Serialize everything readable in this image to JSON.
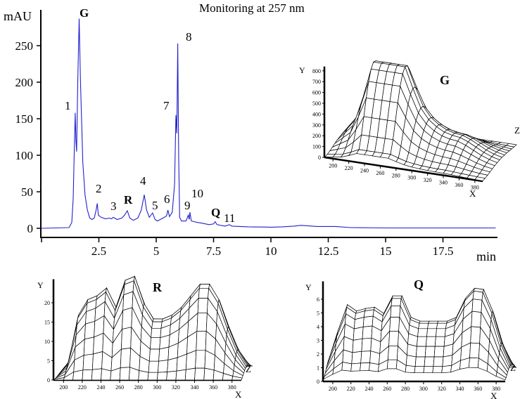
{
  "chart_data": [
    {
      "type": "line",
      "title": "Monitoring at 257 nm",
      "xlabel": "min",
      "ylabel": "mAU",
      "xlim": [
        0,
        19.8
      ],
      "ylim": [
        -8,
        298
      ],
      "xticks": [
        0,
        2.5,
        5,
        7.5,
        10,
        12.5,
        15,
        17.5
      ],
      "xtick_labels": [
        "",
        "2.5",
        "5",
        "7.5",
        "10",
        "12.5",
        "15",
        "17.5"
      ],
      "yticks": [
        0,
        50,
        100,
        150,
        200,
        250
      ],
      "ytick_labels": [
        "0",
        "50",
        "100",
        "150",
        "200",
        "250"
      ],
      "grid": false,
      "line_color": "#2222cc",
      "series": [
        {
          "points": [
            [
              0,
              0
            ],
            [
              1.2,
              1
            ],
            [
              1.32,
              8
            ],
            [
              1.38,
              40
            ],
            [
              1.44,
              120
            ],
            [
              1.47,
              158
            ],
            [
              1.5,
              120
            ],
            [
              1.53,
              105
            ],
            [
              1.58,
              200
            ],
            [
              1.64,
              287
            ],
            [
              1.7,
              200
            ],
            [
              1.8,
              90
            ],
            [
              1.9,
              45
            ],
            [
              2.0,
              25
            ],
            [
              2.1,
              14
            ],
            [
              2.2,
              12
            ],
            [
              2.3,
              14
            ],
            [
              2.38,
              25
            ],
            [
              2.43,
              34
            ],
            [
              2.48,
              18
            ],
            [
              2.6,
              15
            ],
            [
              2.8,
              13
            ],
            [
              2.95,
              14
            ],
            [
              3.05,
              13
            ],
            [
              3.13,
              15
            ],
            [
              3.3,
              12
            ],
            [
              3.5,
              14
            ],
            [
              3.62,
              18
            ],
            [
              3.74,
              24
            ],
            [
              3.85,
              14
            ],
            [
              4.0,
              11
            ],
            [
              4.2,
              14
            ],
            [
              4.35,
              25
            ],
            [
              4.48,
              46
            ],
            [
              4.58,
              25
            ],
            [
              4.7,
              15
            ],
            [
              4.84,
              21
            ],
            [
              4.95,
              12
            ],
            [
              5.05,
              10
            ],
            [
              5.3,
              14
            ],
            [
              5.45,
              17
            ],
            [
              5.51,
              25
            ],
            [
              5.58,
              16
            ],
            [
              5.7,
              22
            ],
            [
              5.8,
              60
            ],
            [
              5.86,
              155
            ],
            [
              5.9,
              130
            ],
            [
              5.94,
              253
            ],
            [
              5.98,
              100
            ],
            [
              6.02,
              15
            ],
            [
              6.1,
              10
            ],
            [
              6.3,
              10
            ],
            [
              6.4,
              18
            ],
            [
              6.44,
              12
            ],
            [
              6.47,
              22
            ],
            [
              6.53,
              10
            ],
            [
              6.8,
              8
            ],
            [
              7.0,
              7
            ],
            [
              7.3,
              5
            ],
            [
              7.5,
              6
            ],
            [
              7.57,
              9
            ],
            [
              7.65,
              5
            ],
            [
              8.0,
              3
            ],
            [
              8.19,
              5
            ],
            [
              8.3,
              3
            ],
            [
              9.0,
              2
            ],
            [
              10.0,
              1.5
            ],
            [
              10.5,
              2
            ],
            [
              11,
              3
            ],
            [
              11.3,
              4
            ],
            [
              11.6,
              3.5
            ],
            [
              12,
              2.5
            ],
            [
              12.8,
              2.5
            ],
            [
              13.5,
              1
            ],
            [
              15,
              0.5
            ],
            [
              19.8,
              0.5
            ]
          ]
        }
      ],
      "peak_labels": [
        {
          "label": "1",
          "time": 1.47,
          "bold": false
        },
        {
          "label": "G",
          "time": 1.64,
          "bold": true
        },
        {
          "label": "2",
          "time": 2.43,
          "bold": false
        },
        {
          "label": "3",
          "time": 3.13,
          "bold": false
        },
        {
          "label": "R",
          "time": 3.74,
          "bold": true
        },
        {
          "label": "4",
          "time": 4.48,
          "bold": false
        },
        {
          "label": "5",
          "time": 4.84,
          "bold": false
        },
        {
          "label": "6",
          "time": 5.51,
          "bold": false
        },
        {
          "label": "7",
          "time": 5.86,
          "bold": false
        },
        {
          "label": "8",
          "time": 5.94,
          "bold": false
        },
        {
          "label": "9",
          "time": 6.4,
          "bold": false
        },
        {
          "label": "10",
          "time": 6.47,
          "bold": false
        },
        {
          "label": "Q",
          "time": 7.57,
          "bold": true
        },
        {
          "label": "11",
          "time": 8.19,
          "bold": false
        }
      ]
    },
    {
      "type": "surface3d",
      "title": "G",
      "xlabel": "X",
      "ylabel": "Y",
      "zlabel": "Z",
      "xticks": [
        "200",
        "220",
        "240",
        "260",
        "280",
        "300",
        "320",
        "340",
        "360",
        "380"
      ],
      "yticks": [
        "0",
        "100",
        "200",
        "300",
        "400",
        "500",
        "600",
        "700",
        "800"
      ],
      "ylim": [
        0,
        800
      ],
      "wavelengths": [
        190,
        200,
        210,
        220,
        230,
        240,
        250,
        260,
        270,
        280,
        290,
        300,
        310,
        320,
        330,
        340,
        350,
        360,
        370,
        380,
        390
      ],
      "spectrum_max": [
        50,
        150,
        250,
        500,
        800,
        800,
        800,
        800,
        800,
        600,
        420,
        320,
        260,
        220,
        200,
        190,
        160,
        120,
        80,
        50,
        30
      ]
    },
    {
      "type": "surface3d",
      "title": "R",
      "xlabel": "X",
      "ylabel": "Y",
      "zlabel": "Z",
      "xticks": [
        "200",
        "220",
        "240",
        "260",
        "280",
        "300",
        "320",
        "340",
        "360",
        "380"
      ],
      "yticks": [
        "0",
        "5",
        "10",
        "15",
        "20"
      ],
      "ylim": [
        0,
        25
      ],
      "wavelengths": [
        190,
        200,
        210,
        220,
        230,
        240,
        250,
        260,
        270,
        280,
        290,
        300,
        310,
        320,
        330,
        340,
        350,
        360,
        370,
        380,
        390
      ],
      "spectrum_max": [
        0,
        3,
        15,
        19,
        20,
        22,
        17,
        24,
        25,
        18,
        14,
        14,
        15,
        17,
        20,
        23,
        23,
        19,
        12,
        6,
        2
      ]
    },
    {
      "type": "surface3d",
      "title": "Q",
      "xlabel": "X",
      "ylabel": "Y",
      "zlabel": "Z",
      "xticks": [
        "200",
        "220",
        "240",
        "260",
        "280",
        "300",
        "320",
        "340",
        "360",
        "380"
      ],
      "yticks": [
        "0",
        "1",
        "2",
        "3",
        "4",
        "5",
        "6"
      ],
      "ylim": [
        0,
        7
      ],
      "wavelengths": [
        190,
        200,
        210,
        220,
        230,
        240,
        250,
        260,
        270,
        280,
        290,
        300,
        310,
        320,
        330,
        340,
        350,
        360,
        370,
        380,
        390
      ],
      "spectrum_max": [
        1.2,
        3.5,
        5.5,
        5.0,
        5.2,
        5.3,
        4.8,
        6.2,
        6.2,
        4.5,
        4.2,
        4.2,
        4.2,
        4.2,
        4.5,
        6.0,
        6.8,
        6.7,
        5.0,
        2.5,
        0.8
      ]
    }
  ]
}
